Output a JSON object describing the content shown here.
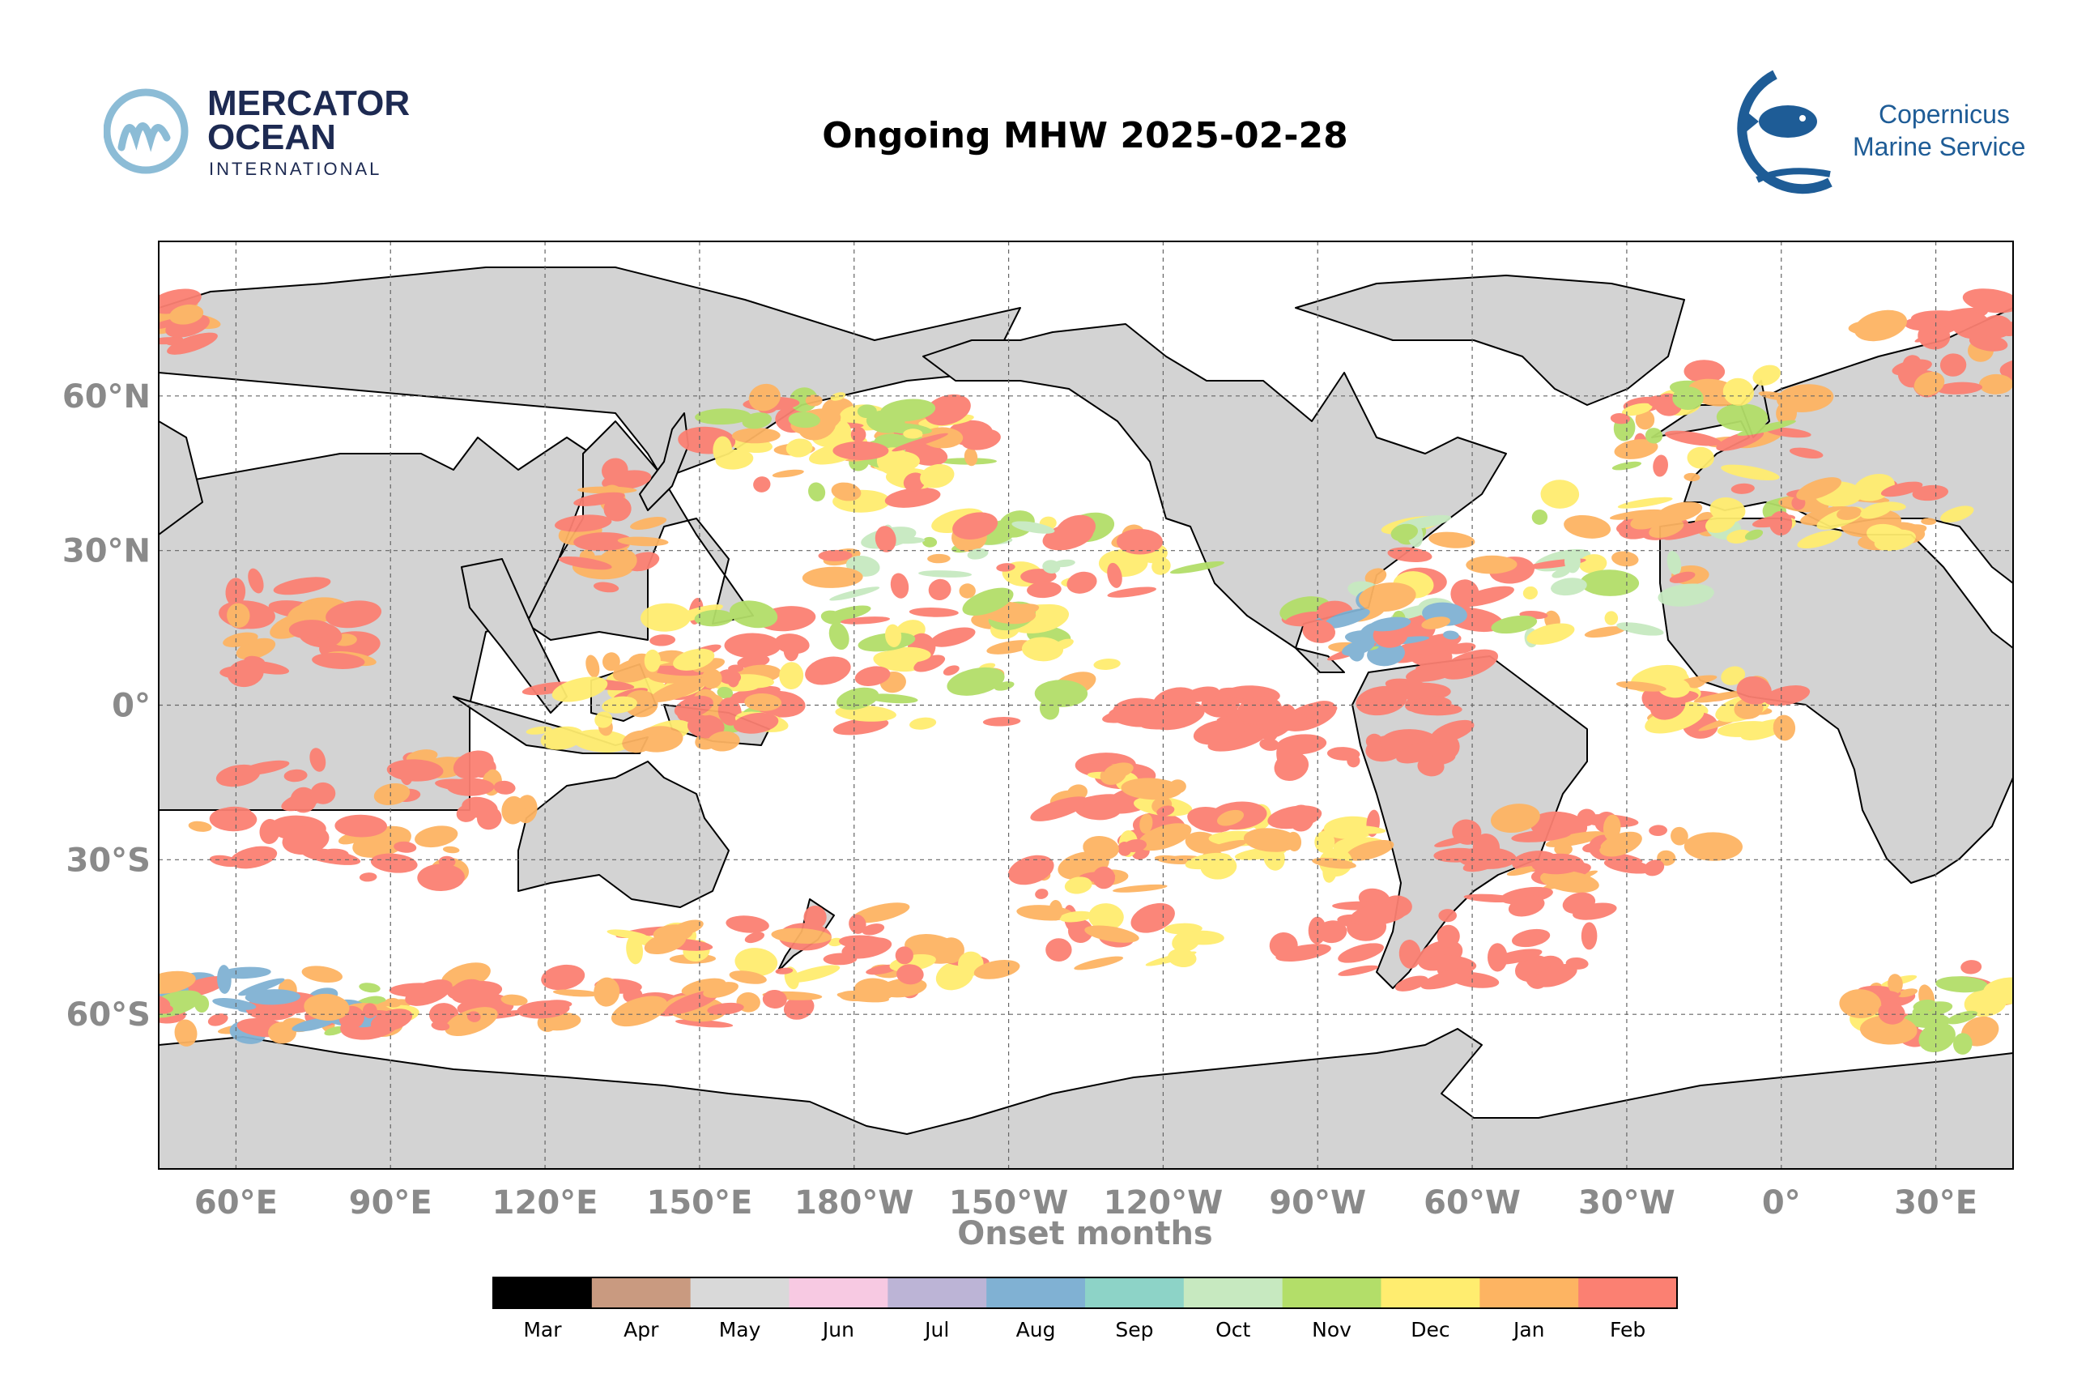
{
  "header": {
    "title": "Ongoing MHW 2025-02-28",
    "mercator_logo": {
      "line1": "MERCATOR",
      "line2": "OCEAN",
      "line3": "INTERNATIONAL",
      "icon": "m-wave-icon"
    },
    "copernicus_logo": {
      "line1": "Copernicus",
      "line2": "Marine Service",
      "icon": "fish-icon"
    }
  },
  "map": {
    "projection": "plate-carree",
    "lon_range": [
      45,
      405
    ],
    "lat_range": [
      -90,
      90
    ],
    "xlabel": "Onset months",
    "lon_ticks": [
      "60°E",
      "90°E",
      "120°E",
      "150°E",
      "180°W",
      "150°W",
      "120°W",
      "90°W",
      "60°W",
      "30°W",
      "0°",
      "30°E"
    ],
    "lat_ticks": [
      "60°N",
      "30°N",
      "0°",
      "30°S",
      "60°S"
    ],
    "grid": true,
    "land_color": "#d3d3d3",
    "ocean_color": "#ffffff"
  },
  "colorbar": {
    "labels": [
      "Mar",
      "Apr",
      "May",
      "Jun",
      "Jul",
      "Aug",
      "Sep",
      "Oct",
      "Nov",
      "Dec",
      "Jan",
      "Feb"
    ],
    "colors": [
      "#000000",
      "#c99a80",
      "#d9d9d9",
      "#f7c9e2",
      "#bcb4d6",
      "#80b1d3",
      "#8dd3c7",
      "#c7e9c0",
      "#b3de69",
      "#ffed6f",
      "#fdb462",
      "#fb8072"
    ]
  },
  "chart_data": {
    "type": "heatmap",
    "title": "Ongoing MHW 2025-02-28",
    "xlabel": "Onset months",
    "ylabel": "",
    "categories": [
      "Mar",
      "Apr",
      "May",
      "Jun",
      "Jul",
      "Aug",
      "Sep",
      "Oct",
      "Nov",
      "Dec",
      "Jan",
      "Feb"
    ]
  }
}
